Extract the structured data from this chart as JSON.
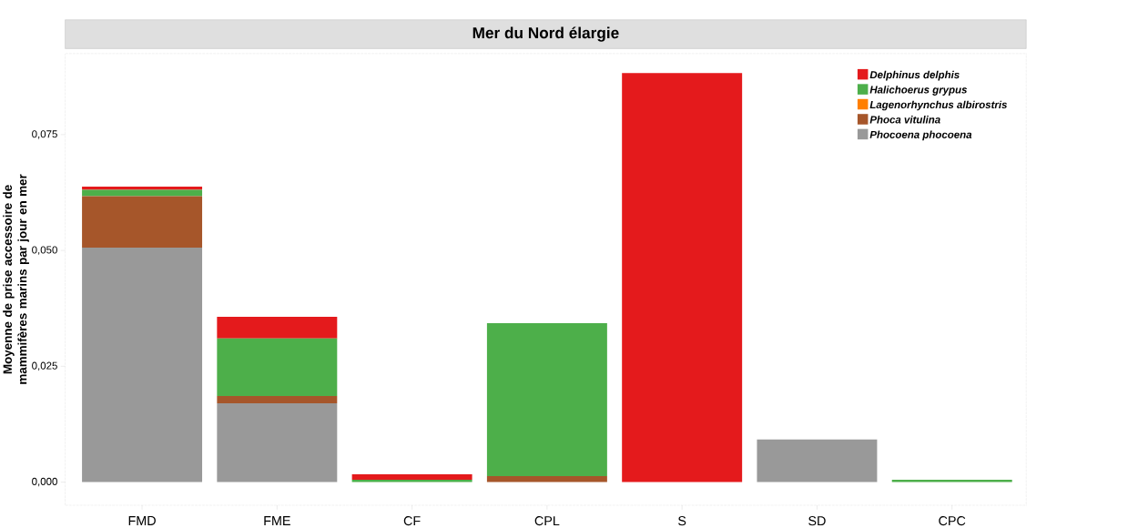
{
  "chart_data": {
    "type": "bar",
    "title": "Mer du Nord élargie",
    "ylabel": "Moyenne de prise accessoire de mammifères marins par jour en mer",
    "categories": [
      "FMD",
      "FME",
      "CF",
      "CPL",
      "S",
      "SD",
      "CPC"
    ],
    "stacked": true,
    "series": [
      {
        "name": "Phocoena phocoena",
        "color": "#999999",
        "values": [
          0.0506,
          0.017,
          0,
          0,
          0,
          0.0092,
          0
        ]
      },
      {
        "name": "Phoca vitulina",
        "color": "#a6562a",
        "values": [
          0.0111,
          0.0016,
          0,
          0.0013,
          0,
          0,
          0
        ]
      },
      {
        "name": "Lagenorhynchus albirostris",
        "color": "#ff7f00",
        "values": [
          0,
          0,
          0,
          0,
          0,
          0,
          0
        ]
      },
      {
        "name": "Halichoerus grypus",
        "color": "#4daf4a",
        "values": [
          0.0014,
          0.0124,
          0.0005,
          0.033,
          0,
          0,
          0.0005
        ]
      },
      {
        "name": "Delphinus delphis",
        "color": "#e41a1c",
        "values": [
          0.0007,
          0.0047,
          0.0012,
          0,
          0.0883,
          0,
          0
        ]
      }
    ],
    "ylim": [
      -0.005,
      0.0925
    ],
    "yticks": [
      {
        "value": 0,
        "label": "0,000"
      },
      {
        "value": 0.025,
        "label": "0,025"
      },
      {
        "value": 0.05,
        "label": "0,050"
      },
      {
        "value": 0.075,
        "label": "0,075"
      }
    ],
    "grid": false,
    "legend": "top right"
  }
}
